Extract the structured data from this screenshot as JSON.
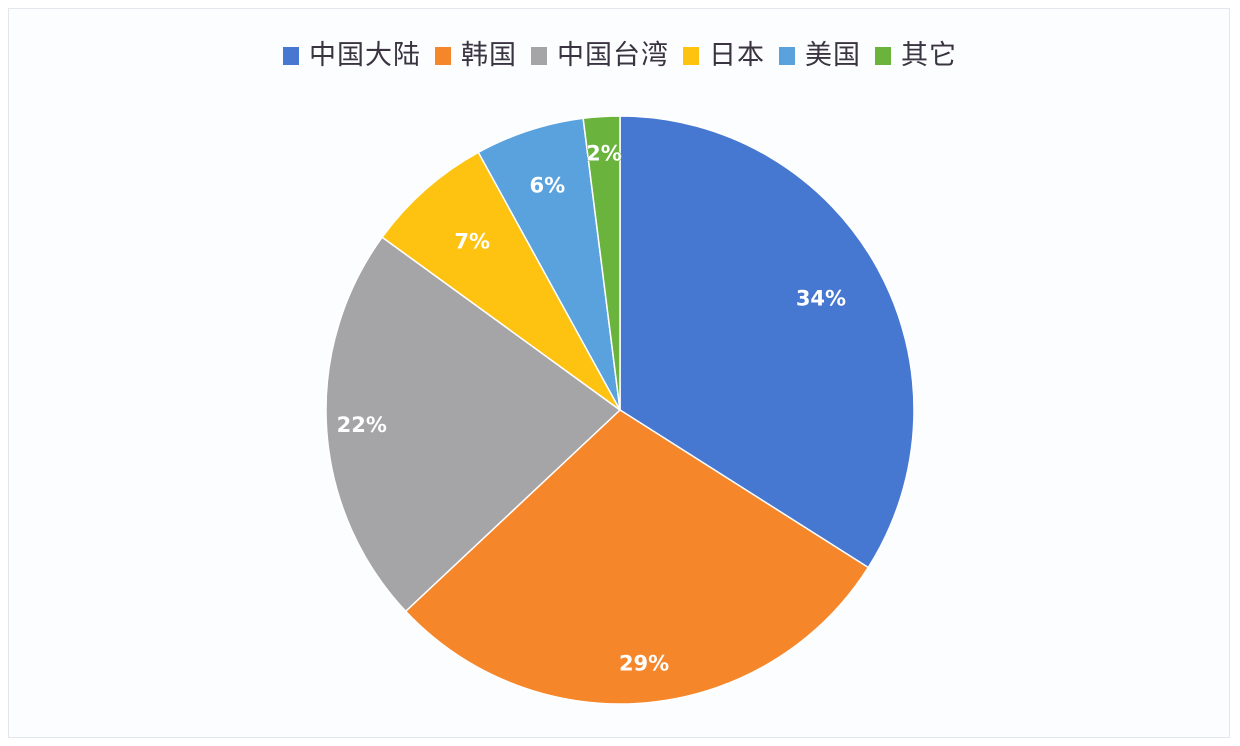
{
  "chart_data": {
    "type": "pie",
    "title": "",
    "legend_position": "top",
    "categories": [
      "中国大陆",
      "韩国",
      "中国台湾",
      "日本",
      "美国",
      "其它"
    ],
    "values": [
      34,
      29,
      22,
      7,
      6,
      2
    ],
    "labels": [
      "34%",
      "29%",
      "22%",
      "7%",
      "6%",
      "2%"
    ],
    "colors": [
      "#4677d1",
      "#f5862a",
      "#a5a5a8",
      "#fec210",
      "#5aa2dd",
      "#6ab33d"
    ],
    "start_angle": "12 o'clock",
    "direction": "clockwise",
    "unit": "%"
  },
  "legend": {
    "items": [
      {
        "label": "中国大陆",
        "color": "#4677d1"
      },
      {
        "label": "韩国",
        "color": "#f5862a"
      },
      {
        "label": "中国台湾",
        "color": "#a5a5a8"
      },
      {
        "label": "日本",
        "color": "#fec210"
      },
      {
        "label": "美国",
        "color": "#5aa2dd"
      },
      {
        "label": "其它",
        "color": "#6ab33d"
      }
    ]
  }
}
